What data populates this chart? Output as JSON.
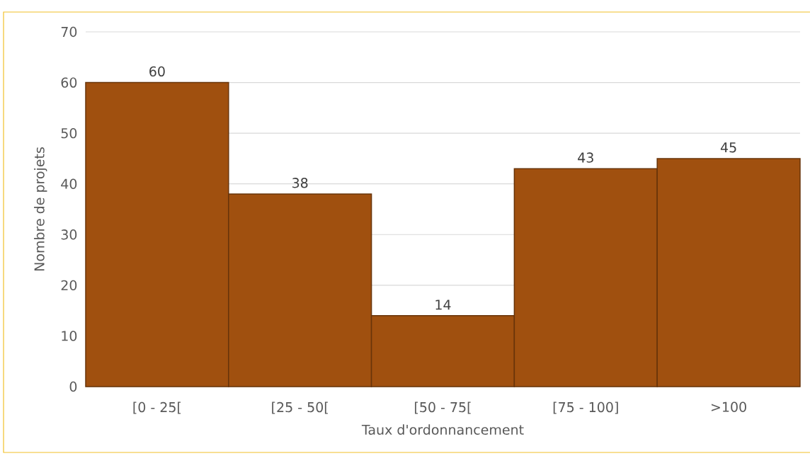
{
  "chart_data": {
    "type": "bar",
    "categories": [
      "[0 - 25[",
      "[25 - 50[",
      "[50 - 75[",
      "[75 - 100]",
      ">100"
    ],
    "values": [
      60,
      38,
      14,
      43,
      45
    ],
    "color": "#a0500f",
    "xlabel": "Taux d'ordonnancement",
    "ylabel": "Nombre de projets",
    "ylim": [
      0,
      70
    ],
    "yticks": [
      0,
      10,
      20,
      30,
      40,
      50,
      60,
      70
    ],
    "grid": "y",
    "data_labels": true
  }
}
